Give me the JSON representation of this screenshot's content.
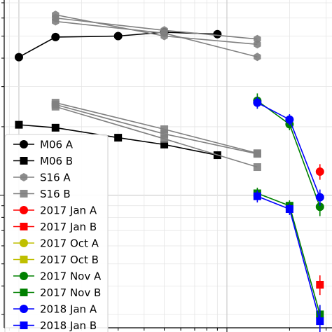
{
  "chart_data": {
    "type": "line",
    "x_scale": "log",
    "y_scale": "log",
    "grid": true,
    "legend_position": "lower-left",
    "title": "",
    "xlabel": "",
    "ylabel": "",
    "series": [
      {
        "name": "M06 A",
        "color": "#000000",
        "marker": "circle",
        "points": [
          [
            1.0,
            4.04
          ],
          [
            1.5,
            4.95
          ],
          [
            3.0,
            5.0
          ],
          [
            5.0,
            5.2
          ],
          [
            9.0,
            5.1
          ]
        ]
      },
      {
        "name": "M06 B",
        "color": "#000000",
        "marker": "square",
        "points": [
          [
            1.0,
            2.04
          ],
          [
            1.5,
            1.98
          ],
          [
            3.0,
            1.79
          ],
          [
            5.0,
            1.67
          ],
          [
            9.0,
            1.5
          ]
        ]
      },
      {
        "name": "S16 A",
        "color": "#808080",
        "marker": "hexagon",
        "faint": true,
        "points": [
          [
            1.5,
            6.2
          ],
          [
            5.0,
            5.0
          ],
          [
            14.0,
            4.6
          ]
        ]
      },
      {
        "name": "S16 A",
        "color": "#808080",
        "marker": "hexagon",
        "faint": true,
        "hide_in_legend": true,
        "points": [
          [
            1.5,
            6.0
          ],
          [
            5.0,
            5.3
          ],
          [
            14.0,
            4.85
          ]
        ]
      },
      {
        "name": "S16 A",
        "color": "#808080",
        "marker": "hexagon",
        "faint": true,
        "hide_in_legend": true,
        "points": [
          [
            1.5,
            5.8
          ],
          [
            5.0,
            5.15
          ],
          [
            14.0,
            4.05
          ]
        ]
      },
      {
        "name": "S16 B",
        "color": "#808080",
        "marker": "square",
        "faint": true,
        "points": [
          [
            1.5,
            2.55
          ],
          [
            5.0,
            1.95
          ],
          [
            14.0,
            1.53
          ]
        ]
      },
      {
        "name": "S16 B",
        "color": "#808080",
        "marker": "square",
        "faint": true,
        "hide_in_legend": true,
        "points": [
          [
            1.5,
            2.5
          ],
          [
            5.0,
            1.86
          ],
          [
            14.0,
            1.52
          ]
        ]
      },
      {
        "name": "S16 B",
        "color": "#808080",
        "marker": "square",
        "faint": true,
        "hide_in_legend": true,
        "points": [
          [
            1.5,
            2.45
          ],
          [
            5.0,
            1.77
          ],
          [
            14.0,
            1.33
          ]
        ]
      },
      {
        "name": "2017 Jan A",
        "color": "#ff0000",
        "marker": "circle",
        "points": [
          [
            28.0,
            1.27
          ]
        ],
        "yerr": [
          [
            0.1,
            0.1
          ]
        ]
      },
      {
        "name": "2017 Jan B",
        "color": "#ff0000",
        "marker": "square",
        "points": [
          [
            28.0,
            0.405
          ]
        ],
        "yerr": [
          [
            0.04,
            0.04
          ]
        ]
      },
      {
        "name": "2017 Oct A",
        "color": "#bfbf00",
        "marker": "circle",
        "points": []
      },
      {
        "name": "2017 Oct B",
        "color": "#bfbf00",
        "marker": "square",
        "points": []
      },
      {
        "name": "2017 Nov A",
        "color": "#008000",
        "marker": "circle",
        "points": [
          [
            14.0,
            2.6
          ],
          [
            20.0,
            2.05
          ],
          [
            28.0,
            0.89
          ]
        ],
        "yerr": [
          [
            0.2,
            0.2
          ],
          [
            0.12,
            0.12
          ],
          [
            0.08,
            0.08
          ]
        ]
      },
      {
        "name": "2017 Nov B",
        "color": "#008000",
        "marker": "square",
        "points": [
          [
            14.0,
            1.02
          ],
          [
            20.0,
            0.9
          ],
          [
            28.0,
            0.3
          ]
        ],
        "yerr": [
          [
            0.06,
            0.06
          ],
          [
            0.05,
            0.05
          ],
          [
            0.03,
            0.03
          ]
        ]
      },
      {
        "name": "2018 Jan A",
        "color": "#0000ff",
        "marker": "circle",
        "points": [
          [
            14.0,
            2.55
          ],
          [
            20.0,
            2.15
          ],
          [
            28.0,
            0.98
          ]
        ],
        "yerr": [
          [
            0.15,
            0.15
          ],
          [
            0.12,
            0.12
          ],
          [
            0.08,
            0.08
          ]
        ]
      },
      {
        "name": "2018 Jan B",
        "color": "#0000ff",
        "marker": "square",
        "points": [
          [
            14.0,
            0.99
          ],
          [
            20.0,
            0.87
          ],
          [
            28.0,
            0.28
          ]
        ],
        "yerr": [
          [
            0.06,
            0.06
          ],
          [
            0.05,
            0.05
          ],
          [
            0.05,
            0.05
          ]
        ]
      }
    ]
  }
}
